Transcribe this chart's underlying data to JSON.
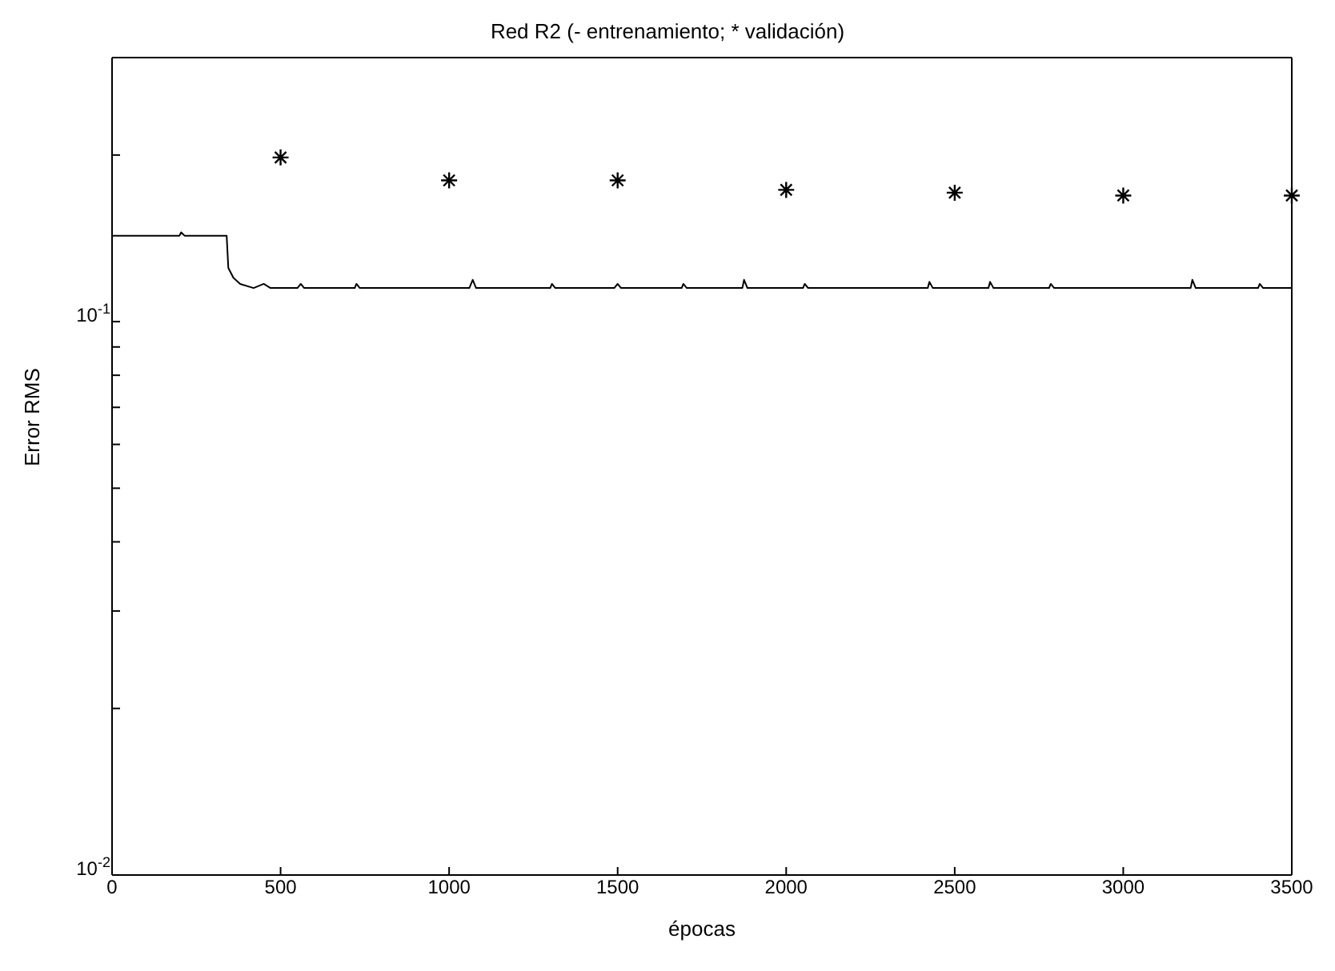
{
  "chart_data": {
    "type": "line",
    "title": "Red R2 (- entrenamiento; * validación)",
    "xlabel": "épocas",
    "ylabel": "Error RMS",
    "log": "y",
    "grid": false,
    "xlim": [
      0,
      3500
    ],
    "xticks": [
      0,
      500,
      1000,
      1500,
      2000,
      2500,
      3000,
      3500
    ],
    "ylim": [
      0.01,
      0.3
    ],
    "yticks": [
      {
        "value": 0.01,
        "label": "10$^{-2}$"
      },
      {
        "value": 0.02,
        "label": null
      },
      {
        "value": 0.03,
        "label": null
      },
      {
        "value": 0.04,
        "label": null
      },
      {
        "value": 0.05,
        "label": null
      },
      {
        "value": 0.06,
        "label": null
      },
      {
        "value": 0.07,
        "label": null
      },
      {
        "value": 0.08,
        "label": null
      },
      {
        "value": 0.09,
        "label": null
      },
      {
        "value": 0.1,
        "label": "10$^{-1}$"
      },
      {
        "value": 0.2,
        "label": null
      },
      {
        "value": 0.3,
        "label": null
      }
    ],
    "series": [
      {
        "color": "#000000",
        "marker": "none",
        "line_style": "solid",
        "x": [
          0,
          200,
          205,
          215,
          340,
          345,
          360,
          380,
          420,
          450,
          470,
          550,
          560,
          570,
          720,
          725,
          735,
          1060,
          1070,
          1080,
          1300,
          1305,
          1315,
          1490,
          1500,
          1510,
          1690,
          1695,
          1705,
          1870,
          1875,
          1885,
          2050,
          2055,
          2065,
          2420,
          2425,
          2435,
          2600,
          2605,
          2615,
          2780,
          2785,
          2795,
          3200,
          3205,
          3215,
          3400,
          3405,
          3415,
          3500
        ],
        "values": [
          0.143,
          0.143,
          0.145,
          0.143,
          0.143,
          0.125,
          0.12,
          0.117,
          0.115,
          0.117,
          0.115,
          0.115,
          0.117,
          0.115,
          0.115,
          0.117,
          0.115,
          0.115,
          0.119,
          0.115,
          0.115,
          0.117,
          0.115,
          0.115,
          0.117,
          0.115,
          0.115,
          0.117,
          0.115,
          0.115,
          0.119,
          0.115,
          0.115,
          0.117,
          0.115,
          0.115,
          0.118,
          0.115,
          0.115,
          0.118,
          0.115,
          0.115,
          0.117,
          0.115,
          0.115,
          0.119,
          0.115,
          0.115,
          0.117,
          0.115,
          0.115
        ]
      },
      {
        "type": "scatter",
        "color": "#000000",
        "marker": "cross",
        "x": [
          500,
          1000,
          1500,
          2000,
          2500,
          3000,
          3500
        ],
        "values": [
          0.198,
          0.18,
          0.18,
          0.173,
          0.171,
          0.169,
          0.169
        ]
      }
    ]
  }
}
